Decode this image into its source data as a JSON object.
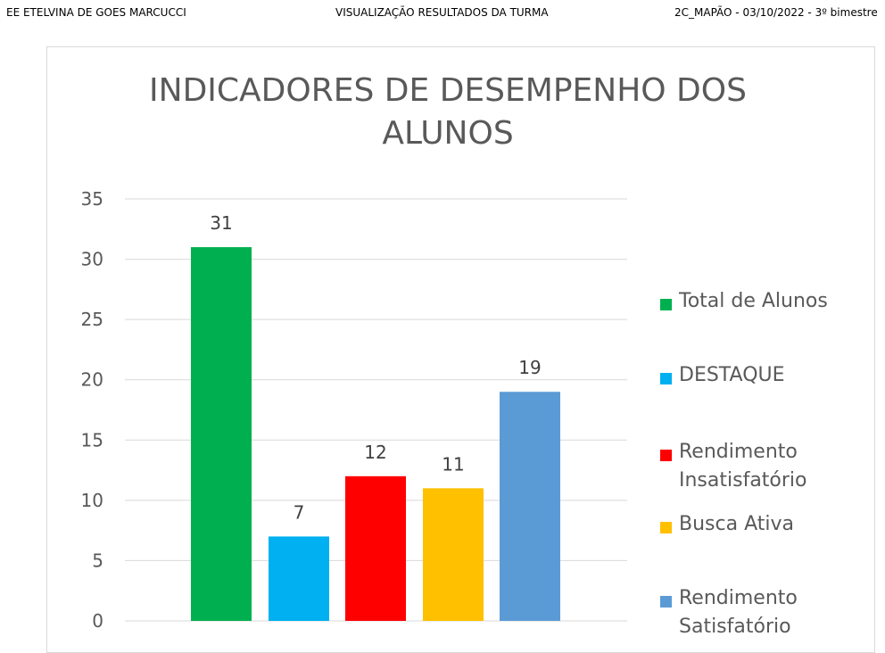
{
  "header": {
    "left": "EE ETELVINA DE GOES MARCUCCI",
    "center": "VISUALIZAÇÃO  RESULTADOS DA TURMA",
    "right": "2C_MAPÃO - 03/10/2022 - 3º bimestre"
  },
  "chart_data": {
    "type": "bar",
    "title_line1": "INDICADORES DE DESEMPENHO DOS",
    "title_line2": "ALUNOS",
    "categories": [
      "Total de Alunos",
      "DESTAQUE",
      "Rendimento Insatisfatório",
      "Busca Ativa",
      "Rendimento Satisfatório"
    ],
    "values": [
      31,
      7,
      12,
      11,
      19
    ],
    "colors": [
      "#00b050",
      "#00b0f0",
      "#ff0000",
      "#ffc000",
      "#5b9bd5"
    ],
    "ylim": [
      0,
      35
    ],
    "yticks": [
      0,
      5,
      10,
      15,
      20,
      25,
      30,
      35
    ],
    "grid": true,
    "legend_position": "right"
  }
}
